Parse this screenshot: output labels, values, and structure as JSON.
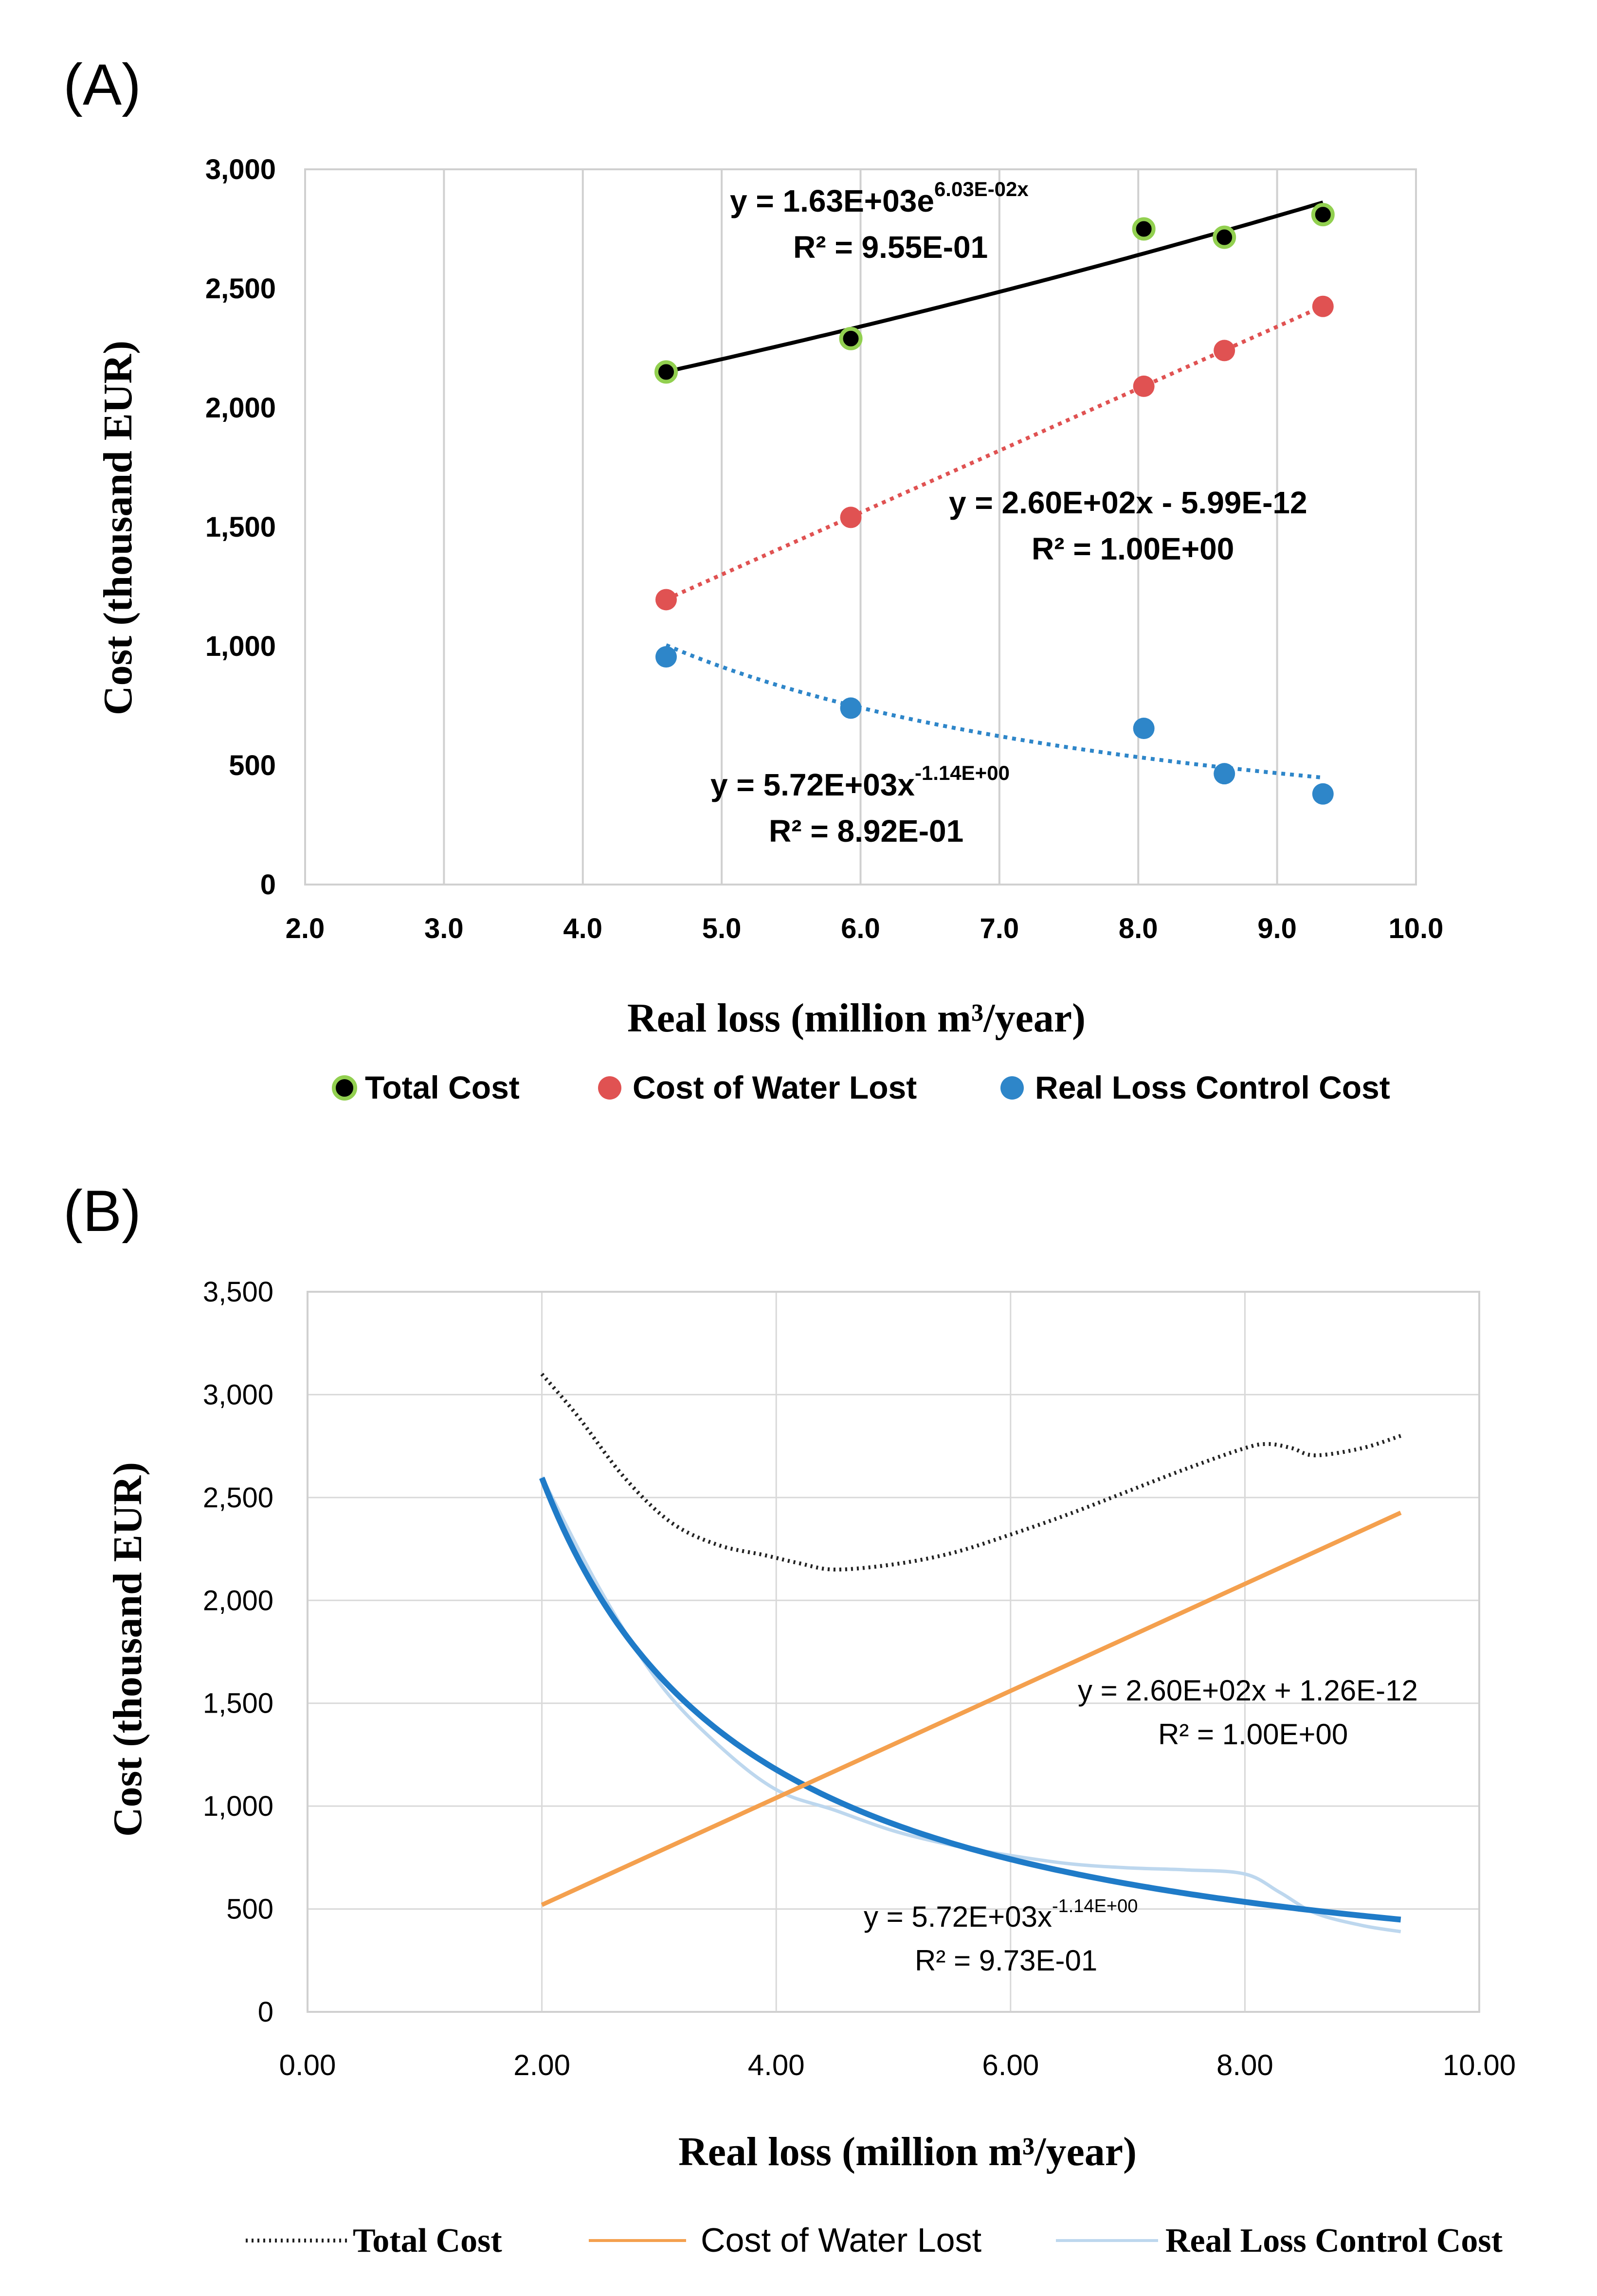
{
  "chart_data": [
    {
      "panel_label": "(A)",
      "type": "scatter",
      "xlabel": "Real loss (million m³/year)",
      "ylabel": "Cost (thousand EUR)",
      "xlim": [
        2.0,
        10.0
      ],
      "ylim": [
        0,
        3000
      ],
      "xticks": [
        "2.0",
        "3.0",
        "4.0",
        "5.0",
        "6.0",
        "7.0",
        "8.0",
        "9.0",
        "10.0"
      ],
      "yticks": [
        "0",
        "500",
        "1,000",
        "1,500",
        "2,000",
        "2,500",
        "3,000"
      ],
      "grid": "vertical",
      "legend_position": "bottom",
      "x": [
        4.6,
        5.93,
        8.04,
        8.62,
        9.33
      ],
      "series": [
        {
          "name": "Total Cost",
          "values": [
            2150,
            2290,
            2750,
            2715,
            2810
          ],
          "color": "#000000",
          "edge": "#92D050",
          "trendline": {
            "type": "exponential",
            "a": 1630,
            "b": 0.0603,
            "style": "solid"
          },
          "equation": "y = 1.63E+03e",
          "equation_exp": "6.03E-02x",
          "r2": "R² = 9.55E-01"
        },
        {
          "name": "Cost of Water Lost",
          "values": [
            1195,
            1540,
            2090,
            2240,
            2425
          ],
          "color": "#E05252",
          "trendline": {
            "type": "linear",
            "a": 260,
            "b": 0,
            "style": "dotted"
          },
          "equation": "y = 2.60E+02x - 5.99E-12",
          "r2": "R² = 1.00E+00"
        },
        {
          "name": "Real Loss Control Cost",
          "values": [
            955,
            740,
            655,
            465,
            380
          ],
          "color": "#2E86C9",
          "trendline": {
            "type": "power",
            "a": 5720,
            "b": -1.14,
            "style": "dotted"
          },
          "equation": "y = 5.72E+03x",
          "equation_exp": "-1.14E+00",
          "r2": "R² = 8.92E-01"
        }
      ]
    },
    {
      "panel_label": "(B)",
      "type": "line",
      "xlabel": "Real loss (million m³/year)",
      "ylabel": "Cost (thousand EUR)",
      "xlim": [
        0,
        10
      ],
      "ylim": [
        0,
        3500
      ],
      "xticks": [
        "0.00",
        "2.00",
        "4.00",
        "6.00",
        "8.00",
        "10.00"
      ],
      "yticks": [
        "0",
        "500",
        "1,000",
        "1,500",
        "2,000",
        "2,500",
        "3,000",
        "3,500"
      ],
      "grid": "both",
      "legend_position": "bottom",
      "series": [
        {
          "name": "Total Cost",
          "color": "#222222",
          "style": "dotted",
          "x": [
            2.0,
            2.3,
            2.7,
            3.1,
            3.5,
            3.9,
            4.2,
            4.5,
            5.0,
            5.5,
            6.0,
            6.5,
            7.0,
            7.5,
            8.0,
            8.2,
            8.4,
            8.6,
            9.0,
            9.33
          ],
          "y": [
            3100,
            2900,
            2600,
            2380,
            2270,
            2220,
            2180,
            2150,
            2175,
            2230,
            2320,
            2420,
            2530,
            2640,
            2740,
            2760,
            2740,
            2705,
            2740,
            2800
          ]
        },
        {
          "name": "Cost of Water Lost",
          "color": "#F4A04E",
          "style": "solid",
          "x": [
            2.0,
            9.33
          ],
          "y": [
            520,
            2426
          ]
        },
        {
          "name": "Real Loss Control Cost",
          "color": "#BDD7EE",
          "style": "solid",
          "x": [
            2.0,
            2.5,
            3.0,
            3.5,
            4.0,
            4.5,
            5.0,
            5.5,
            6.0,
            6.5,
            7.0,
            7.5,
            8.0,
            8.3,
            8.6,
            9.0,
            9.33
          ],
          "y": [
            2600,
            2050,
            1600,
            1300,
            1080,
            980,
            880,
            810,
            760,
            720,
            700,
            690,
            670,
            580,
            480,
            420,
            390
          ]
        }
      ],
      "fits": [
        {
          "name": "Real Loss Control Cost fit",
          "color": "#1F7BC8",
          "type": "power",
          "a": 5720,
          "b": -1.14,
          "x_range": [
            2.0,
            9.33
          ],
          "equation": "y = 5.72E+03x",
          "equation_exp": "-1.14E+00",
          "r2": "R² = 9.73E-01"
        },
        {
          "name": "Cost of Water Lost fit",
          "type": "linear",
          "equation": "y = 2.60E+02x + 1.26E-12",
          "r2": "R² = 1.00E+00"
        }
      ]
    }
  ]
}
